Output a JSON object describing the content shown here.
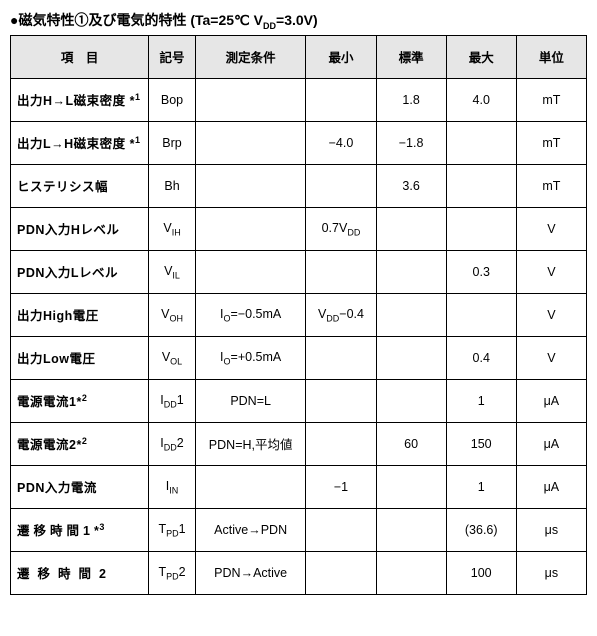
{
  "title_html": "●磁気特性①及び電気的特性 (Ta=25℃ V<span class='sub'>DD</span>=3.0V)",
  "headers": [
    "項　目",
    "記号",
    "測定条件",
    "最小",
    "標準",
    "最大",
    "単位"
  ],
  "rows": [
    {
      "param": "出力H→L磁束密度 *<span class='sup'>1</span>",
      "sym": "Bop",
      "cond": "",
      "min": "",
      "typ": "1.8",
      "max": "4.0",
      "unit": "mT"
    },
    {
      "param": "出力L→H磁束密度 *<span class='sup'>1</span>",
      "sym": "Brp",
      "cond": "",
      "min": "−4.0",
      "typ": "−1.8",
      "max": "",
      "unit": "mT"
    },
    {
      "param": "ヒステリシス幅",
      "sym": "Bh",
      "cond": "",
      "min": "",
      "typ": "3.6",
      "max": "",
      "unit": "mT"
    },
    {
      "param": "PDN入力Hレベル",
      "sym": "V<span class='sub'>IH</span>",
      "cond": "",
      "min": "0.7V<span class='sub'>DD</span>",
      "typ": "",
      "max": "",
      "unit": "V"
    },
    {
      "param": "PDN入力Lレベル",
      "sym": "V<span class='sub'>IL</span>",
      "cond": "",
      "min": "",
      "typ": "",
      "max": "0.3",
      "unit": "V"
    },
    {
      "param": "出力High電圧",
      "sym": "V<span class='sub'>OH</span>",
      "cond": "I<span class='sub'>O</span>=−0.5mA",
      "min": "V<span class='sub'>DD</span>−0.4",
      "typ": "",
      "max": "",
      "unit": "V"
    },
    {
      "param": "出力Low電圧",
      "sym": "V<span class='sub'>OL</span>",
      "cond": "I<span class='sub'>O</span>=+0.5mA",
      "min": "",
      "typ": "",
      "max": "0.4",
      "unit": "V"
    },
    {
      "param": "電源電流1*<span class='sup'>2</span>",
      "sym": "I<span class='sub'>DD</span>1",
      "cond": "PDN=L",
      "min": "",
      "typ": "",
      "max": "1",
      "unit": "μA"
    },
    {
      "param": "電源電流2*<span class='sup'>2</span>",
      "sym": "I<span class='sub'>DD</span>2",
      "cond": "PDN=H,平均値",
      "min": "",
      "typ": "60",
      "max": "150",
      "unit": "μA"
    },
    {
      "param": "PDN入力電流",
      "sym": "I<span class='sub'>IN</span>",
      "cond": "",
      "min": "−1",
      "typ": "",
      "max": "1",
      "unit": "μA"
    },
    {
      "param": "<span class='spaced'>遷移時間1</span>*<span class='sup'>3</span>",
      "sym": "T<span class='sub'>PD</span>1",
      "cond": "Active→PDN",
      "min": "",
      "typ": "",
      "max": "(36.6)",
      "unit": "μs"
    },
    {
      "param": "<span class='spaced2'>遷移時間2</span>",
      "sym": "T<span class='sub'>PD</span>2",
      "cond": "PDN→Active",
      "min": "",
      "typ": "",
      "max": "100",
      "unit": "μs"
    }
  ]
}
